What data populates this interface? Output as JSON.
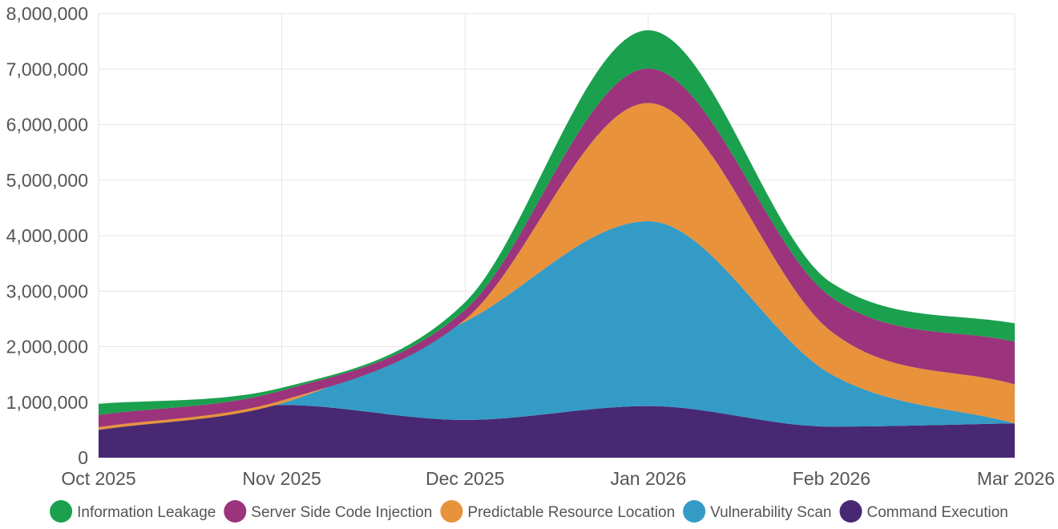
{
  "chart_data": {
    "type": "area",
    "stacked": true,
    "smooth": true,
    "categories": [
      "Oct 2025",
      "Nov 2025",
      "Dec 2025",
      "Jan 2026",
      "Feb 2026",
      "Mar 2026"
    ],
    "ylim": [
      0,
      8000000
    ],
    "yticks": [
      0,
      1000000,
      2000000,
      3000000,
      4000000,
      5000000,
      6000000,
      7000000,
      8000000
    ],
    "ytick_labels": [
      "0",
      "1,000,000",
      "2,000,000",
      "3,000,000",
      "4,000,000",
      "5,000,000",
      "6,000,000",
      "7,000,000",
      "8,000,000"
    ],
    "grid": true,
    "legend_position": "bottom",
    "series": [
      {
        "name": "Command Execution",
        "color": "#482872",
        "values": [
          500000,
          950000,
          680000,
          930000,
          560000,
          620000
        ]
      },
      {
        "name": "Vulnerability Scan",
        "color": "#339bc6",
        "values": [
          0,
          30000,
          1770000,
          3330000,
          940000,
          0
        ]
      },
      {
        "name": "Predictable Resource Location",
        "color": "#e8923c",
        "values": [
          50000,
          50000,
          40000,
          2130000,
          770000,
          700000
        ]
      },
      {
        "name": "Server Side Code Injection",
        "color": "#9b347c",
        "values": [
          220000,
          180000,
          170000,
          620000,
          620000,
          770000
        ]
      },
      {
        "name": "Information Leakage",
        "color": "#1ba04e",
        "values": [
          200000,
          50000,
          140000,
          690000,
          260000,
          330000
        ]
      }
    ],
    "legend_order": [
      "Information Leakage",
      "Server Side Code Injection",
      "Predictable Resource Location",
      "Vulnerability Scan",
      "Command Execution"
    ]
  }
}
